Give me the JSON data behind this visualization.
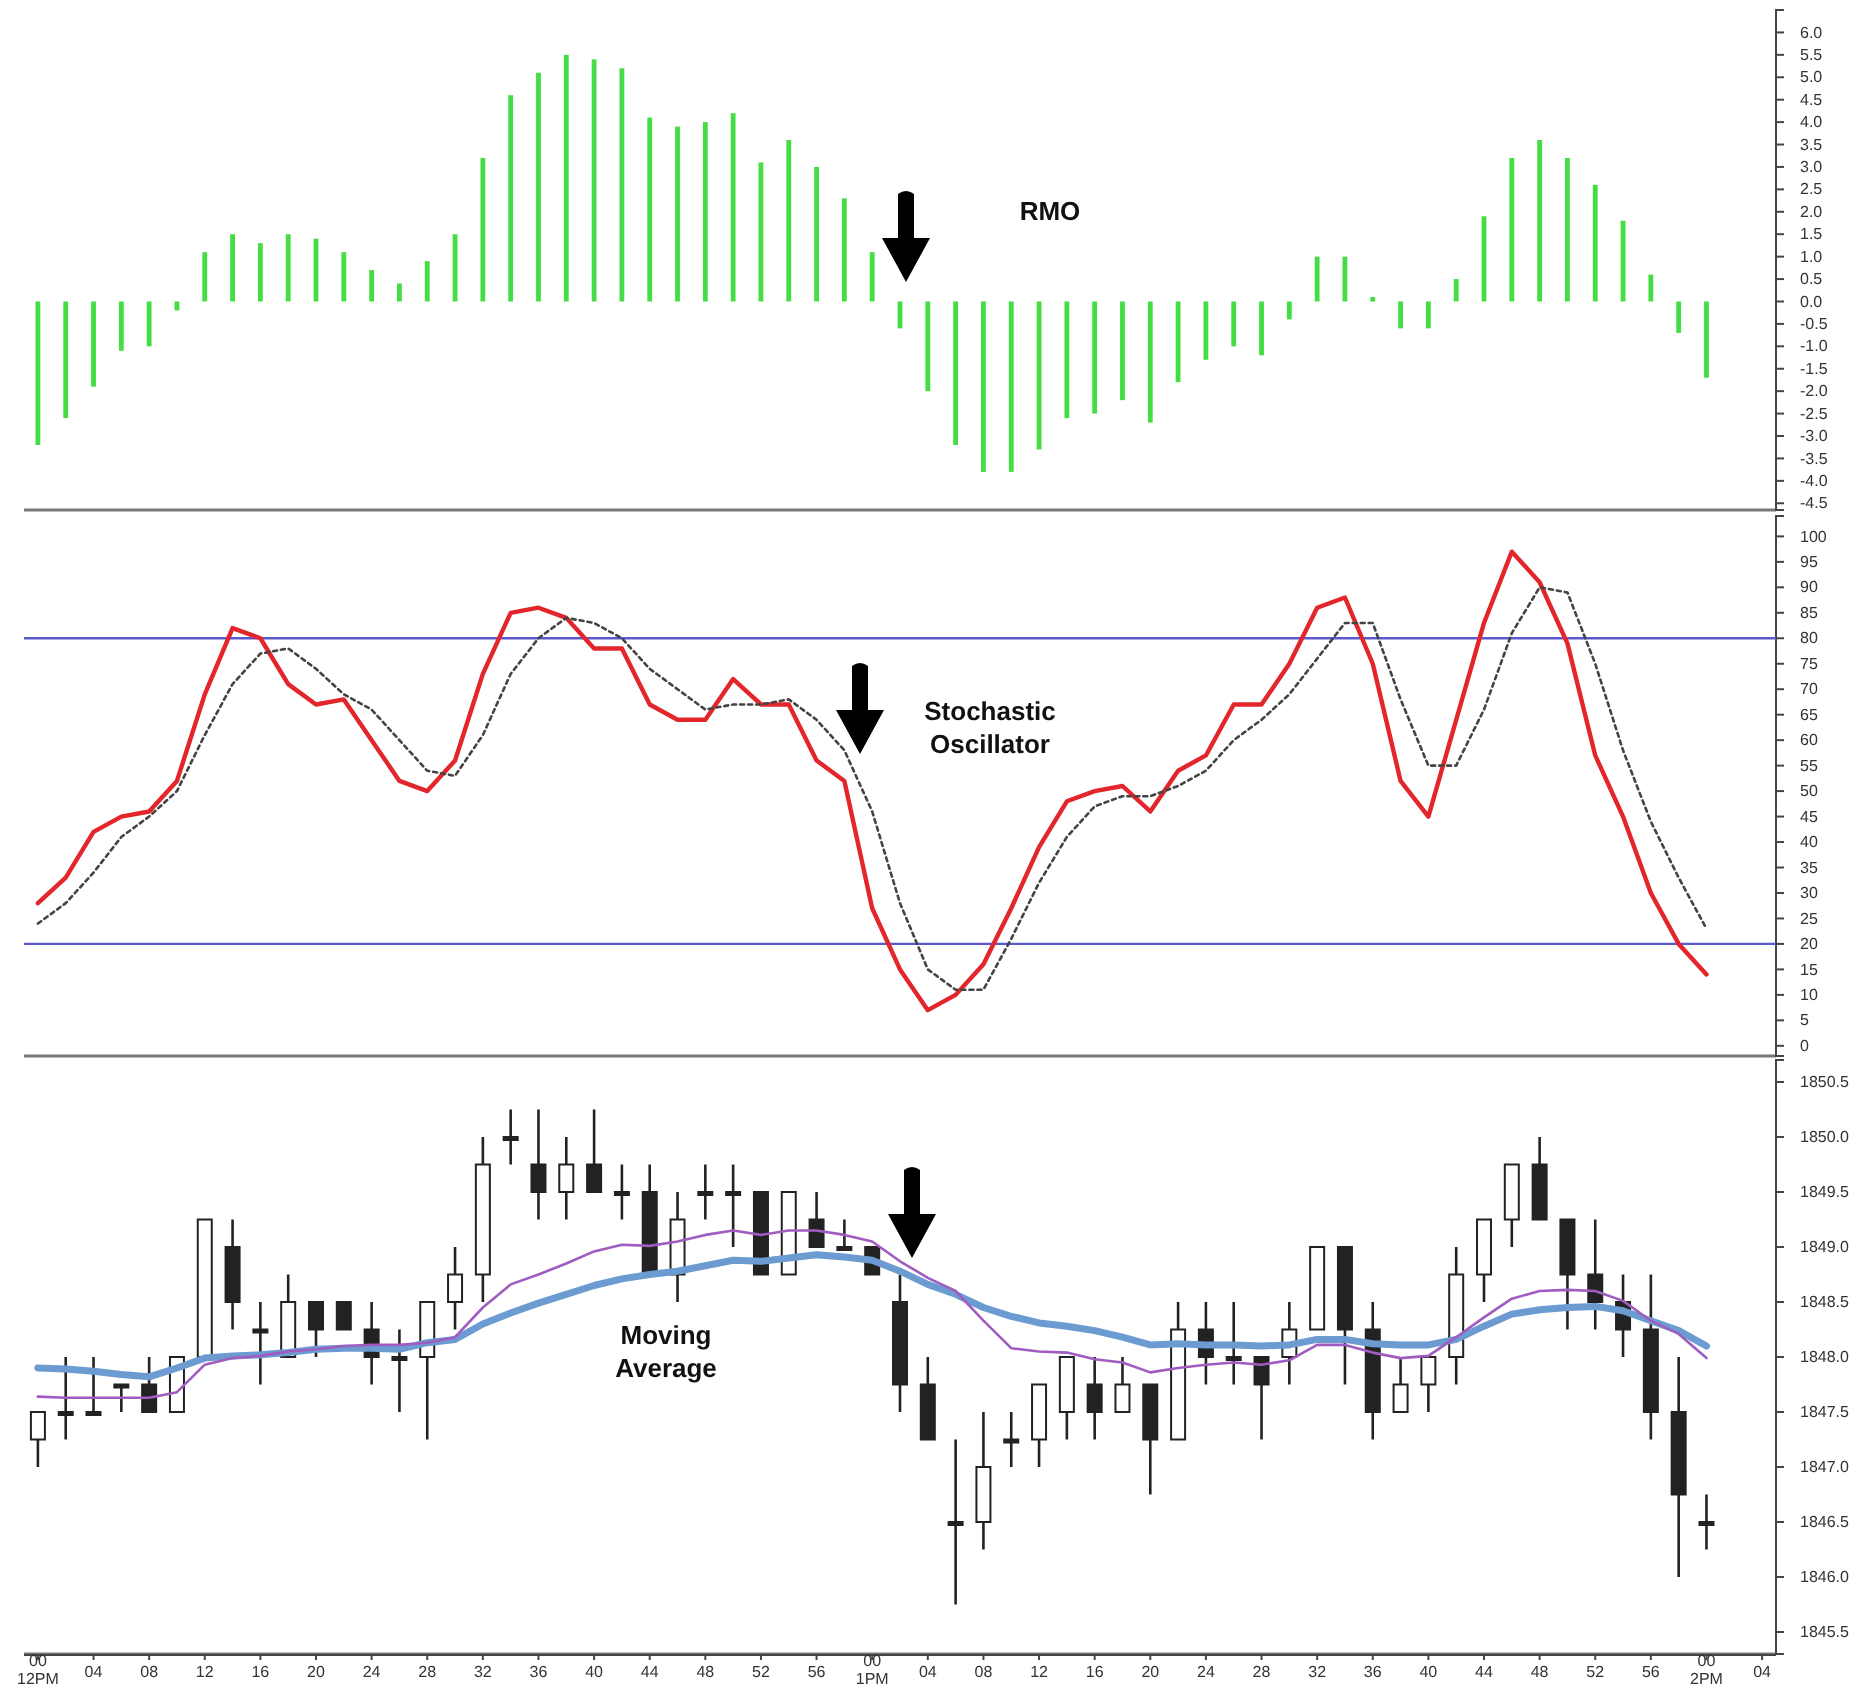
{
  "chart_data": [
    {
      "type": "bar",
      "color": "#44dd44",
      "tick_labels": "y",
      "categories": [
        null,
        null,
        null,
        null,
        null,
        null,
        null,
        null,
        null,
        null,
        null,
        null,
        null,
        null,
        null,
        null,
        null,
        null,
        null,
        null,
        null,
        null,
        null,
        null,
        null,
        null,
        null,
        null,
        null,
        null,
        null,
        null,
        null,
        null,
        null,
        null,
        null,
        null,
        null,
        null,
        null,
        null,
        null,
        null,
        null,
        null,
        null,
        null,
        null,
        null,
        null,
        null,
        null,
        null,
        null,
        null,
        null,
        null,
        null,
        null,
        null,
        null,
        null
      ],
      "values": [
        -3.2,
        -2.6,
        -1.9,
        -1.1,
        -1.0,
        -0.2,
        1.1,
        1.5,
        1.3,
        1.5,
        1.4,
        1.1,
        0.7,
        0.4,
        0.9,
        1.5,
        3.2,
        4.6,
        5.1,
        5.5,
        5.4,
        5.2,
        4.1,
        3.9,
        4.0,
        4.2,
        3.1,
        3.6,
        3.0,
        2.3,
        1.1,
        -0.6,
        -2.0,
        -3.2,
        -3.8,
        -3.8,
        -3.3,
        -2.6,
        -2.5,
        -2.2,
        -2.7,
        -1.8,
        -1.3,
        -1.0,
        -1.2,
        -0.4,
        1.0,
        1.0,
        0.1,
        -0.6,
        -0.6,
        0.5,
        1.9,
        3.2,
        3.6,
        3.2,
        2.6,
        1.8,
        0.6,
        -0.7,
        -1.7,
        null,
        null
      ],
      "ylim": [
        -4.65,
        6.5
      ],
      "yticks": [
        {
          "value": -4.5,
          "label": "-4.5"
        },
        {
          "value": -4,
          "label": "-4.0"
        },
        {
          "value": -3.5,
          "label": "-3.5"
        },
        {
          "value": -3,
          "label": "-3.0"
        },
        {
          "value": -2.5,
          "label": "-2.5"
        },
        {
          "value": -2,
          "label": "-2.0"
        },
        {
          "value": -1.5,
          "label": "-1.5"
        },
        {
          "value": -1,
          "label": "-1.0"
        },
        {
          "value": -0.5,
          "label": "-0.5"
        },
        {
          "value": 0,
          "label": "0.0"
        },
        {
          "value": 0.5,
          "label": "0.5"
        },
        {
          "value": 1,
          "label": "1.0"
        },
        {
          "value": 1.5,
          "label": "1.5"
        },
        {
          "value": 2,
          "label": "2.0"
        },
        {
          "value": 2.5,
          "label": "2.5"
        },
        {
          "value": 3,
          "label": "3.0"
        },
        {
          "value": 3.5,
          "label": "3.5"
        },
        {
          "value": 4,
          "label": "4.0"
        },
        {
          "value": 4.5,
          "label": "4.5"
        },
        {
          "value": 5,
          "label": "5.0"
        },
        {
          "value": 5.5,
          "label": "5.5"
        },
        {
          "value": 6,
          "label": "6.0"
        }
      ],
      "annotations": [
        "RMO"
      ]
    },
    {
      "type": "line",
      "tick_labels": "y",
      "categories": [
        null,
        null,
        null,
        null,
        null,
        null,
        null,
        null,
        null,
        null,
        null,
        null,
        null,
        null,
        null,
        null,
        null,
        null,
        null,
        null,
        null,
        null,
        null,
        null,
        null,
        null,
        null,
        null,
        null,
        null,
        null,
        null,
        null,
        null,
        null,
        null,
        null,
        null,
        null,
        null,
        null,
        null,
        null,
        null,
        null,
        null,
        null,
        null,
        null,
        null,
        null,
        null,
        null,
        null,
        null,
        null,
        null,
        null,
        null,
        null,
        null,
        null,
        null
      ],
      "series": [
        {
          "color": "#e2262b",
          "values": [
            28,
            33,
            42,
            45,
            46,
            52,
            69,
            82,
            80,
            71,
            67,
            68,
            60,
            52,
            50,
            56,
            73,
            85,
            86,
            84,
            78,
            78,
            67,
            64,
            64,
            72,
            67,
            67,
            56,
            52,
            27,
            15,
            7,
            10,
            16,
            27,
            39,
            48,
            50,
            51,
            46,
            54,
            57,
            67,
            67,
            75,
            86,
            88,
            75,
            52,
            45,
            64,
            83,
            97,
            91,
            79,
            57,
            45,
            30,
            20,
            14,
            null,
            null
          ]
        },
        {
          "color": "#444444",
          "line_style": "dotted",
          "values": [
            24,
            28,
            34,
            41,
            45,
            50,
            61,
            71,
            77,
            78,
            74,
            69,
            66,
            60,
            54,
            53,
            61,
            73,
            80,
            84,
            83,
            80,
            74,
            70,
            66,
            67,
            67,
            68,
            64,
            58,
            46,
            28,
            15,
            11,
            11,
            21,
            32,
            41,
            47,
            49,
            49,
            51,
            54,
            60,
            64,
            69,
            76,
            83,
            83,
            68,
            55,
            55,
            66,
            81,
            90,
            89,
            75,
            58,
            44,
            33,
            23,
            null,
            null
          ]
        }
      ],
      "ylim": [
        -2,
        104
      ],
      "yticks": [
        0,
        5,
        10,
        15,
        20,
        25,
        30,
        35,
        40,
        45,
        50,
        55,
        60,
        65,
        70,
        75,
        80,
        85,
        90,
        95,
        100
      ],
      "ref_lines": [
        {
          "axis": "y",
          "value": 80,
          "color": "#5a5acd"
        },
        {
          "axis": "y",
          "value": 20,
          "color": "#5a5acd"
        }
      ],
      "annotations": [
        "Stochastic Oscillator"
      ]
    },
    {
      "type": "candlestick",
      "color": "#222222",
      "categories": [
        "00\n12PM",
        null,
        "04",
        null,
        "08",
        null,
        "12",
        null,
        "16",
        null,
        "20",
        null,
        "24",
        null,
        "28",
        null,
        "32",
        null,
        "36",
        null,
        "40",
        null,
        "44",
        null,
        "48",
        null,
        "52",
        null,
        "56",
        null,
        "00\n1PM",
        null,
        "04",
        null,
        "08",
        null,
        "12",
        null,
        "16",
        null,
        "20",
        null,
        "24",
        null,
        "28",
        null,
        "32",
        null,
        "36",
        null,
        "40",
        null,
        "44",
        null,
        "48",
        null,
        "52",
        null,
        "56",
        null,
        "00\n2PM",
        null,
        "04"
      ],
      "ohlc": [
        [
          1847.25,
          1847.5,
          1847.0,
          1847.5
        ],
        [
          1847.5,
          1848.0,
          1847.25,
          1847.5
        ],
        [
          1847.5,
          1848.0,
          1847.5,
          1847.5
        ],
        [
          1847.75,
          1847.75,
          1847.5,
          1847.75
        ],
        [
          1847.75,
          1848.0,
          1847.5,
          1847.5
        ],
        [
          1847.5,
          1848.0,
          1847.5,
          1848.0
        ],
        [
          1848.0,
          1849.25,
          1848.0,
          1849.25
        ],
        [
          1849.0,
          1849.25,
          1848.25,
          1848.5
        ],
        [
          1848.25,
          1848.5,
          1847.75,
          1848.25
        ],
        [
          1848.0,
          1848.75,
          1848.0,
          1848.5
        ],
        [
          1848.5,
          1848.5,
          1848.0,
          1848.25
        ],
        [
          1848.5,
          1848.5,
          1848.25,
          1848.25
        ],
        [
          1848.25,
          1848.5,
          1847.75,
          1848.0
        ],
        [
          1848.0,
          1848.25,
          1847.5,
          1848.0
        ],
        [
          1848.0,
          1848.5,
          1847.25,
          1848.5
        ],
        [
          1848.5,
          1849.0,
          1848.25,
          1848.75
        ],
        [
          1848.75,
          1850.0,
          1848.5,
          1849.75
        ],
        [
          1850.0,
          1850.25,
          1849.75,
          1850.0
        ],
        [
          1849.75,
          1850.25,
          1849.25,
          1849.5
        ],
        [
          1849.5,
          1850.0,
          1849.25,
          1849.75
        ],
        [
          1849.75,
          1850.25,
          1849.5,
          1849.5
        ],
        [
          1849.5,
          1849.75,
          1849.25,
          1849.5
        ],
        [
          1849.5,
          1849.75,
          1848.75,
          1848.75
        ],
        [
          1848.75,
          1849.5,
          1848.5,
          1849.25
        ],
        [
          1849.5,
          1849.75,
          1849.25,
          1849.5
        ],
        [
          1849.5,
          1849.75,
          1849.0,
          1849.5
        ],
        [
          1849.5,
          1849.5,
          1848.75,
          1848.75
        ],
        [
          1848.75,
          1849.5,
          1848.75,
          1849.5
        ],
        [
          1849.25,
          1849.5,
          1849.0,
          1849.0
        ],
        [
          1849.0,
          1849.25,
          1849.0,
          1849.0
        ],
        [
          1849.0,
          1849.0,
          1848.75,
          1848.75
        ],
        [
          1848.5,
          1848.75,
          1847.5,
          1847.75
        ],
        [
          1847.75,
          1848.0,
          1847.25,
          1847.25
        ],
        [
          1846.5,
          1847.25,
          1845.75,
          1846.5
        ],
        [
          1846.5,
          1847.5,
          1846.25,
          1847.0
        ],
        [
          1847.25,
          1847.5,
          1847.0,
          1847.25
        ],
        [
          1847.25,
          1847.75,
          1847.0,
          1847.75
        ],
        [
          1847.5,
          1848.0,
          1847.25,
          1848.0
        ],
        [
          1847.75,
          1848.0,
          1847.25,
          1847.5
        ],
        [
          1847.5,
          1848.0,
          1847.5,
          1847.75
        ],
        [
          1847.75,
          1847.75,
          1846.75,
          1847.25
        ],
        [
          1847.25,
          1848.5,
          1847.25,
          1848.25
        ],
        [
          1848.25,
          1848.5,
          1847.75,
          1848.0
        ],
        [
          1848.0,
          1848.5,
          1847.75,
          1848.0
        ],
        [
          1848.0,
          1848.0,
          1847.25,
          1847.75
        ],
        [
          1848.0,
          1848.5,
          1847.75,
          1848.25
        ],
        [
          1848.25,
          1849.0,
          1848.25,
          1849.0
        ],
        [
          1849.0,
          1849.0,
          1847.75,
          1848.25
        ],
        [
          1848.25,
          1848.5,
          1847.25,
          1847.5
        ],
        [
          1847.5,
          1848.0,
          1847.5,
          1847.75
        ],
        [
          1847.75,
          1848.0,
          1847.5,
          1848.0
        ],
        [
          1848.0,
          1849.0,
          1847.75,
          1848.75
        ],
        [
          1848.75,
          1849.25,
          1848.5,
          1849.25
        ],
        [
          1849.25,
          1849.75,
          1849.0,
          1849.75
        ],
        [
          1849.75,
          1850.0,
          1849.25,
          1849.25
        ],
        [
          1849.25,
          1849.25,
          1848.25,
          1848.75
        ],
        [
          1848.75,
          1849.25,
          1848.25,
          1848.5
        ],
        [
          1848.5,
          1848.75,
          1848.0,
          1848.25
        ],
        [
          1848.25,
          1848.75,
          1847.25,
          1847.5
        ],
        [
          1847.5,
          1848.0,
          1846.0,
          1846.75
        ],
        [
          1846.5,
          1846.75,
          1846.25,
          1846.5
        ],
        null,
        null
      ],
      "series": [
        {
          "type": "line",
          "color": "#a05cc0",
          "values": [
            1847.64,
            1847.63,
            1847.63,
            1847.63,
            1847.63,
            1847.68,
            1847.93,
            1847.99,
            1848.01,
            1848.05,
            1848.07,
            1848.1,
            1848.11,
            1848.11,
            1848.13,
            1848.18,
            1848.45,
            1848.66,
            1848.75,
            1848.85,
            1848.96,
            1849.02,
            1849.01,
            1849.05,
            1849.11,
            1849.15,
            1849.11,
            1849.15,
            1849.15,
            1849.11,
            1849.05,
            1848.87,
            1848.72,
            1848.6,
            1848.33,
            1848.08,
            1848.05,
            1848.04,
            1847.98,
            1847.95,
            1847.86,
            1847.9,
            1847.93,
            1847.95,
            1847.93,
            1847.97,
            1848.11,
            1848.11,
            1848.04,
            1847.99,
            1848.01,
            1848.18,
            1848.36,
            1848.53,
            1848.6,
            1848.61,
            1848.6,
            1848.51,
            1848.33,
            1848.21,
            1847.99,
            null,
            null
          ]
        },
        {
          "type": "line",
          "color": "#6b9bd0",
          "values": [
            1847.9,
            1847.89,
            1847.87,
            1847.84,
            1847.82,
            1847.9,
            1847.99,
            1848.01,
            1848.02,
            1848.04,
            1848.07,
            1848.08,
            1848.08,
            1848.07,
            1848.13,
            1848.16,
            1848.3,
            1848.4,
            1848.49,
            1848.57,
            1848.65,
            1848.71,
            1848.75,
            1848.78,
            1848.83,
            1848.88,
            1848.87,
            1848.9,
            1848.93,
            1848.91,
            1848.88,
            1848.78,
            1848.66,
            1848.57,
            1848.45,
            1848.37,
            1848.31,
            1848.28,
            1848.24,
            1848.18,
            1848.11,
            1848.12,
            1848.11,
            1848.11,
            1848.1,
            1848.11,
            1848.16,
            1848.16,
            1848.12,
            1848.11,
            1848.11,
            1848.16,
            1848.28,
            1848.39,
            1848.43,
            1848.45,
            1848.46,
            1848.42,
            1848.33,
            1848.24,
            1848.1,
            null,
            null
          ]
        }
      ],
      "ylim": [
        1845.3,
        1850.7
      ],
      "yticks": [
        {
          "value": 1845.5,
          "label": "1845.5"
        },
        {
          "value": 1846,
          "label": "1846.0"
        },
        {
          "value": 1846.5,
          "label": "1846.5"
        },
        {
          "value": 1847,
          "label": "1847.0"
        },
        {
          "value": 1847.5,
          "label": "1847.5"
        },
        {
          "value": 1848,
          "label": "1848.0"
        },
        {
          "value": 1848.5,
          "label": "1848.5"
        },
        {
          "value": 1849,
          "label": "1849.0"
        },
        {
          "value": 1849.5,
          "label": "1849.5"
        },
        {
          "value": 1850,
          "label": "1850.0"
        },
        {
          "value": 1850.5,
          "label": "1850.5"
        }
      ],
      "annotations": [
        "Moving Average"
      ]
    }
  ]
}
